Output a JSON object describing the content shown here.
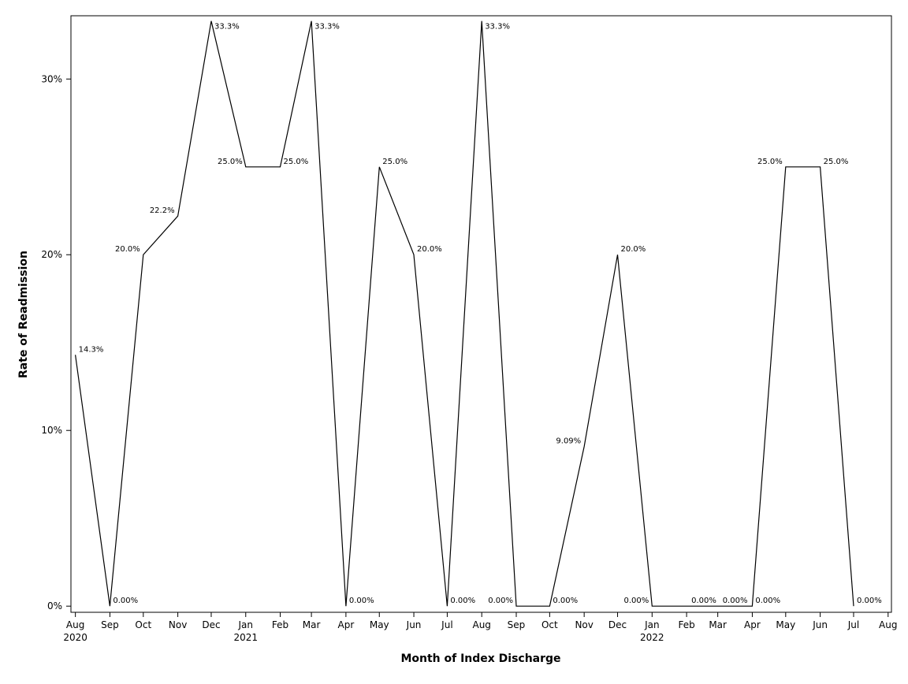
{
  "chart_data": {
    "type": "line",
    "xlabel": "Month of Index Discharge",
    "ylabel": "Rate of Readmission",
    "x": [
      "2020-08",
      "2020-09",
      "2020-10",
      "2020-11",
      "2020-12",
      "2021-01",
      "2021-02",
      "2021-03",
      "2021-04",
      "2021-05",
      "2021-06",
      "2021-07",
      "2021-08",
      "2021-09",
      "2021-10",
      "2021-11",
      "2021-12",
      "2022-01",
      "2022-02",
      "2022-03",
      "2022-04",
      "2022-05",
      "2022-06",
      "2022-07"
    ],
    "series": [
      {
        "values": [
          14.3,
          0,
          20.0,
          22.2,
          33.3,
          25.0,
          25.0,
          33.3,
          0,
          25.0,
          20.0,
          0,
          33.3,
          0,
          0,
          9.09,
          20.0,
          0,
          0,
          0,
          0,
          25.0,
          25.0,
          0
        ],
        "labels": [
          "14.3%",
          "0.00%",
          "20.0%",
          "22.2%",
          "33.3%",
          "25.0%",
          "25.0%",
          "33.3%",
          "0.00%",
          "25.0%",
          "20.0%",
          "0.00%",
          "33.3%",
          "0.00%",
          "0.00%",
          "9.09%",
          "20.0%",
          "0.00%",
          "0.00%",
          "0.00%",
          "0.00%",
          "25.0%",
          "25.0%",
          "0.00%"
        ]
      }
    ],
    "x_ticks": [
      {
        "month": "Aug",
        "year": "2020"
      },
      {
        "month": "Sep",
        "year": ""
      },
      {
        "month": "Oct",
        "year": ""
      },
      {
        "month": "Nov",
        "year": ""
      },
      {
        "month": "Dec",
        "year": ""
      },
      {
        "month": "Jan",
        "year": "2021"
      },
      {
        "month": "Feb",
        "year": ""
      },
      {
        "month": "Mar",
        "year": ""
      },
      {
        "month": "Apr",
        "year": ""
      },
      {
        "month": "May",
        "year": ""
      },
      {
        "month": "Jun",
        "year": ""
      },
      {
        "month": "Jul",
        "year": ""
      },
      {
        "month": "Aug",
        "year": ""
      },
      {
        "month": "Sep",
        "year": ""
      },
      {
        "month": "Oct",
        "year": ""
      },
      {
        "month": "Nov",
        "year": ""
      },
      {
        "month": "Dec",
        "year": ""
      },
      {
        "month": "Jan",
        "year": "2022"
      },
      {
        "month": "Feb",
        "year": ""
      },
      {
        "month": "Mar",
        "year": ""
      },
      {
        "month": "Apr",
        "year": ""
      },
      {
        "month": "May",
        "year": ""
      },
      {
        "month": "Jun",
        "year": ""
      },
      {
        "month": "Jul",
        "year": ""
      },
      {
        "month": "Aug",
        "year": ""
      }
    ],
    "y_ticks": [
      {
        "value": 0,
        "label": "0%"
      },
      {
        "value": 10,
        "label": "10%"
      },
      {
        "value": 20,
        "label": "20%"
      },
      {
        "value": 30,
        "label": "30%"
      }
    ],
    "ylim": [
      -0.35,
      33.6
    ],
    "xlim": [
      "2020-07-28",
      "2022-08-04"
    ],
    "grid": false,
    "line_color": "#000000"
  }
}
